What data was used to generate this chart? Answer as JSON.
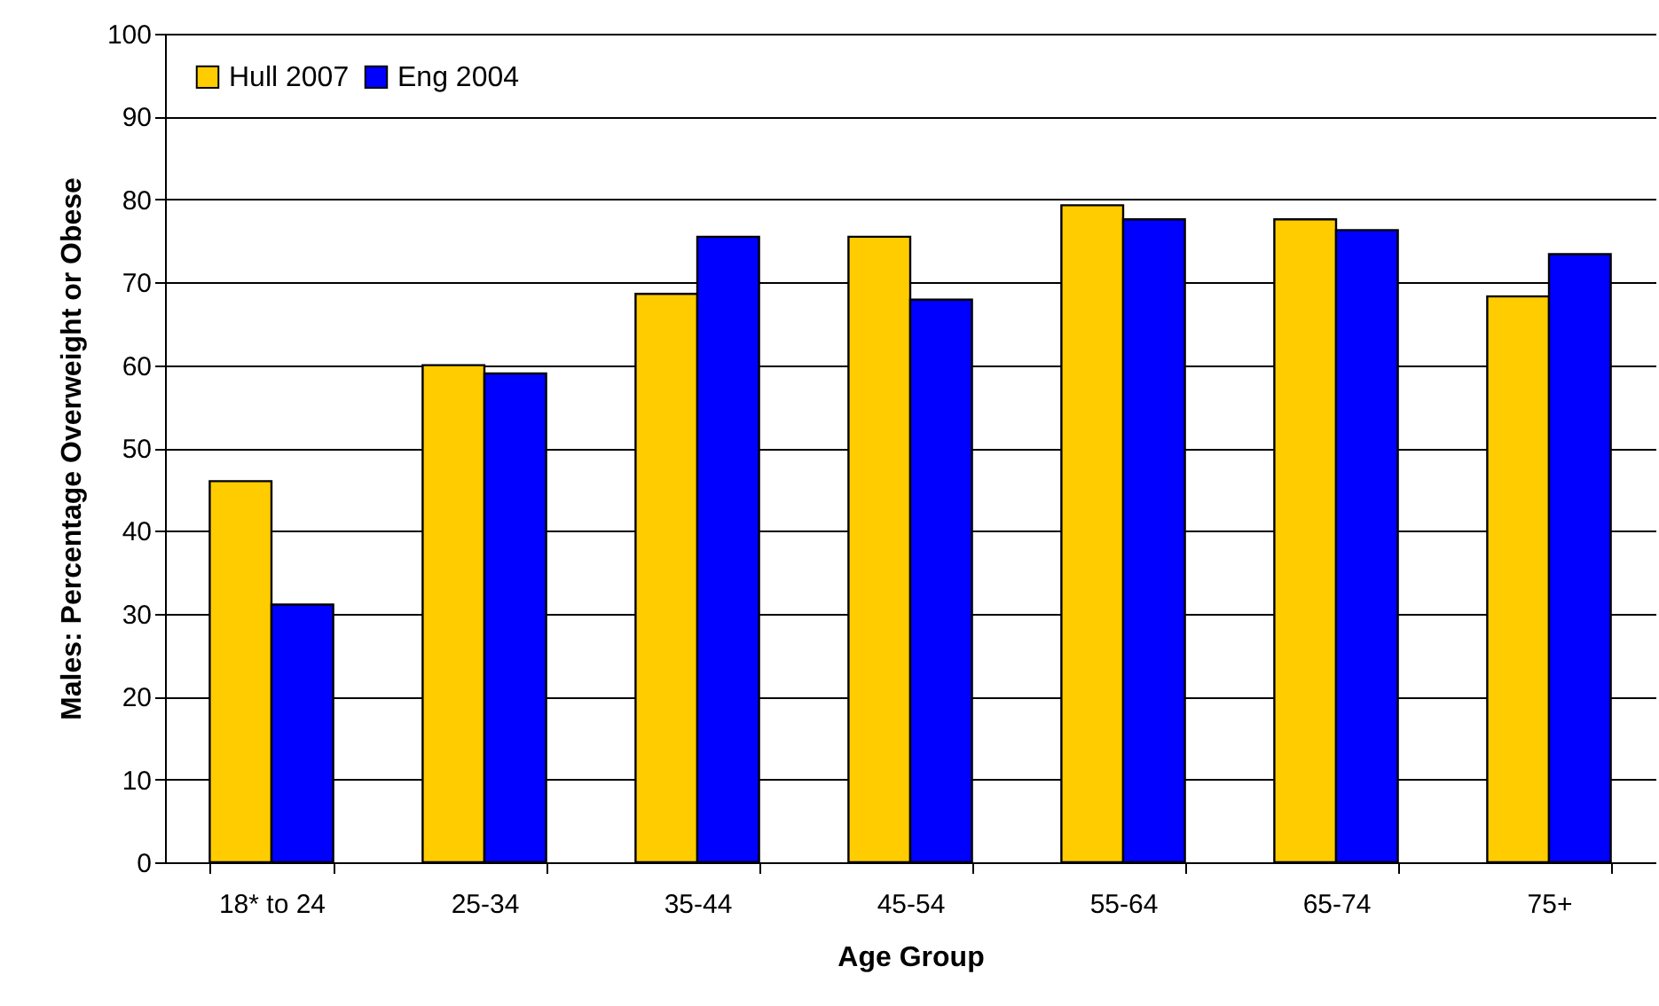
{
  "chart_data": {
    "type": "bar",
    "xlabel": "Age Group",
    "ylabel": "Males: Percentage Overweight or Obese",
    "categories": [
      "18* to 24",
      "25-34",
      "35-44",
      "45-54",
      "55-64",
      "65-74",
      "75+"
    ],
    "series": [
      {
        "name": "Hull 2007",
        "color": "#ffcc00",
        "values": [
          46,
          60,
          68.6,
          75.5,
          79.3,
          77.6,
          68.3
        ]
      },
      {
        "name": "Eng 2004",
        "color": "#0000ff",
        "values": [
          31.1,
          59,
          75.5,
          67.9,
          77.6,
          76.3,
          73.4
        ]
      }
    ],
    "ylim": [
      0,
      100
    ],
    "yticks": [
      0,
      10,
      20,
      30,
      40,
      50,
      60,
      70,
      80,
      90,
      100
    ],
    "grid": "y",
    "legend": "top left"
  }
}
